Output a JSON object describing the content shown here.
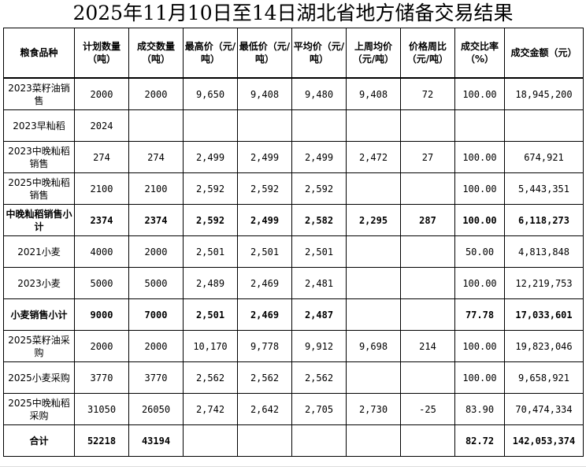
{
  "title": "2025年11月10日至14日湖北省地方储备交易结果",
  "headers": [
    "粮食品种",
    "计划数量（吨）",
    "成交数量（吨）",
    "最高价（元/吨）",
    "最低价（元/吨）",
    "平均价（元/吨）",
    "上周均价（元/吨）",
    "价格周比（元/吨）",
    "成交比率（%）",
    "成交金额（元）"
  ],
  "rows": [
    {
      "cells": [
        "2023菜籽油销售",
        "2000",
        "2000",
        "9,650",
        "9,408",
        "9,480",
        "9,408",
        "72",
        "100.00",
        "18,945,200"
      ],
      "bold": false
    },
    {
      "cells": [
        "2023早籼稻",
        "2024",
        "",
        "",
        "",
        "",
        "",
        "",
        "",
        ""
      ],
      "bold": false
    },
    {
      "cells": [
        "2023中晚籼稻销售",
        "274",
        "274",
        "2,499",
        "2,499",
        "2,499",
        "2,472",
        "27",
        "100.00",
        "674,921"
      ],
      "bold": false
    },
    {
      "cells": [
        "2025中晚籼稻销售",
        "2100",
        "2100",
        "2,592",
        "2,592",
        "2,592",
        "",
        "",
        "100.00",
        "5,443,351"
      ],
      "bold": false
    },
    {
      "cells": [
        "中晚籼稻销售小计",
        "2374",
        "2374",
        "2,592",
        "2,499",
        "2,582",
        "2,295",
        "287",
        "100.00",
        "6,118,273"
      ],
      "bold": true
    },
    {
      "cells": [
        "2021小麦",
        "4000",
        "2000",
        "2,501",
        "2,501",
        "2,501",
        "",
        "",
        "50.00",
        "4,813,848"
      ],
      "bold": false
    },
    {
      "cells": [
        "2023小麦",
        "5000",
        "5000",
        "2,489",
        "2,469",
        "2,481",
        "",
        "",
        "100.00",
        "12,219,753"
      ],
      "bold": false
    },
    {
      "cells": [
        "小麦销售小计",
        "9000",
        "7000",
        "2,501",
        "2,469",
        "2,487",
        "",
        "",
        "77.78",
        "17,033,601"
      ],
      "bold": true
    },
    {
      "cells": [
        "2025菜籽油采购",
        "2000",
        "2000",
        "10,170",
        "9,778",
        "9,912",
        "9,698",
        "214",
        "100.00",
        "19,823,046"
      ],
      "bold": false
    },
    {
      "cells": [
        "2025小麦采购",
        "3770",
        "3770",
        "2,562",
        "2,562",
        "2,562",
        "",
        "",
        "100.00",
        "9,658,921"
      ],
      "bold": false
    },
    {
      "cells": [
        "2025中晚籼稻采购",
        "31050",
        "26050",
        "2,742",
        "2,642",
        "2,705",
        "2,730",
        "-25",
        "83.90",
        "70,474,334"
      ],
      "bold": false
    },
    {
      "cells": [
        "合计",
        "52218",
        "43194",
        "",
        "",
        "",
        "",
        "",
        "82.72",
        "142,053,374"
      ],
      "bold": true
    }
  ]
}
